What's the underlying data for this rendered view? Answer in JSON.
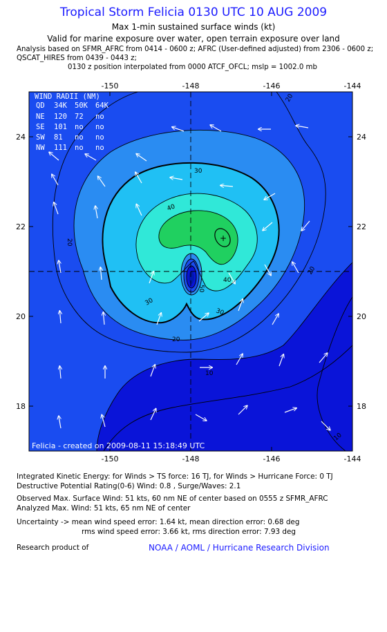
{
  "header": {
    "title": "Tropical Storm Felicia 0130 UTC 10 AUG 2009",
    "subtitle1": "Max 1-min sustained surface winds (kt)",
    "subtitle2": "Valid for marine exposure over water, open terrain exposure over land",
    "analysis_line1": "Analysis based on  SFMR_AFRC from 0414 - 0600 z;  AFRC (User-defined adjusted) from 2306 - 0600 z;",
    "analysis_line2": "QSCAT_HIRES from 0439 - 0443 z;",
    "analysis_line3": "0130 z position interpolated from 0000 ATCF_OFCL; mslp = 1002.0 mb"
  },
  "map": {
    "lon_ticks": [
      "-150",
      "-148",
      "-146",
      "-144"
    ],
    "lat_ticks": [
      "24",
      "22",
      "20",
      "18"
    ],
    "lon_range": [
      -152,
      -144
    ],
    "lat_range": [
      17,
      25
    ],
    "center": {
      "lon": -148,
      "lat": 21
    },
    "contour_labels": [
      "20",
      "30",
      "40",
      "20",
      "30",
      "40",
      "50",
      "20",
      "10",
      "10",
      "20",
      "30"
    ],
    "created_label": "Felicia - created on 2009-08-11 15:18:49 UTC",
    "colors": {
      "lt_10": "#0a14d8",
      "10_20": "#1a4cf0",
      "20_30": "#2a8cf2",
      "30_40": "#20c0f4",
      "40_50": "#30e8d8",
      "gt_50": "#20d060",
      "centroid": "#0018b0"
    }
  },
  "wind_radii": {
    "title": "WIND RADII (NM)",
    "headers": [
      "QD",
      "34K",
      "50K",
      "64K"
    ],
    "rows": [
      [
        "NE",
        "120",
        "72",
        "no"
      ],
      [
        "SE",
        "101",
        "no",
        "no"
      ],
      [
        "SW",
        "81",
        "no",
        "no"
      ],
      [
        "NW",
        "111",
        "no",
        "no"
      ]
    ]
  },
  "stats": {
    "ike": "Integrated Kinetic Energy:  for Winds > TS force: 16 TJ,  for Winds > Hurricane Force: 0 TJ",
    "dpr": "Destructive Potential Rating(0-6)   Wind: 0.8 , Surge/Waves: 2.1",
    "obs_max": "Observed Max. Surface Wind: 51 kts, 60 nm NE of center based on 0555 z SFMR_AFRC",
    "analyzed_max": "Analyzed Max. Wind: 51 kts, 65 nm NE of center",
    "uncert1": "Uncertainty -> mean wind speed error: 1.64 kt,   mean direction error: 0.68 deg",
    "uncert2": "rms wind speed error: 3.66 kt,   rms direction error: 7.93 deg"
  },
  "footer": {
    "research": "Research product of",
    "org": "NOAA / AOML / Hurricane Research Division"
  }
}
